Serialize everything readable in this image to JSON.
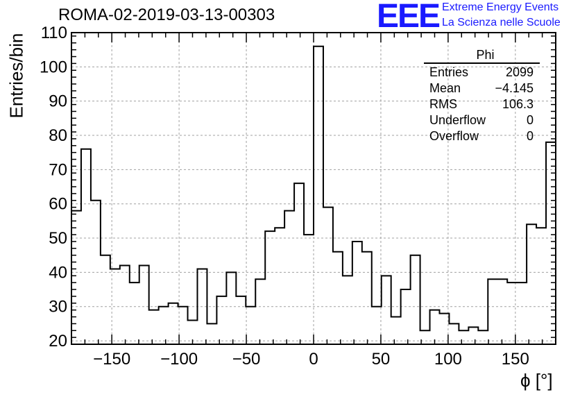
{
  "title": "ROMA-02-2019-03-13-00303",
  "logo": {
    "text": "EEE",
    "line1": "Extreme Energy Events",
    "line2": "La Scienza nelle Scuole",
    "color": "#1a1aff"
  },
  "stats_box": {
    "title": "Phi",
    "rows": [
      {
        "label": "Entries",
        "value": "2099"
      },
      {
        "label": "Mean",
        "value": "−4.145"
      },
      {
        "label": "RMS",
        "value": "106.3"
      },
      {
        "label": "Underflow",
        "value": "0"
      },
      {
        "label": "Overflow",
        "value": "0"
      }
    ]
  },
  "chart_data": {
    "type": "histogram",
    "title": "ROMA-02-2019-03-13-00303",
    "xlabel": "ϕ [°]",
    "ylabel": "Entries/bin",
    "xlim": [
      -180,
      180
    ],
    "ylim": [
      19,
      110
    ],
    "bin_width": 7.2,
    "bin_edges_start": -180,
    "x_ticks": [
      -150,
      -100,
      -50,
      0,
      50,
      100,
      150
    ],
    "x_tick_labels": [
      "−150",
      "−100",
      "−50",
      "0",
      "50",
      "100",
      "150"
    ],
    "y_ticks": [
      20,
      30,
      40,
      50,
      60,
      70,
      80,
      90,
      100,
      110
    ],
    "y_tick_labels": [
      "20",
      "30",
      "40",
      "50",
      "60",
      "70",
      "80",
      "90",
      "100",
      "110"
    ],
    "grid": true,
    "values": [
      58,
      76,
      61,
      45,
      41,
      42,
      37,
      42,
      29,
      30,
      31,
      30,
      26,
      41,
      25,
      33,
      40,
      33,
      30,
      38,
      52,
      53,
      58,
      66,
      51,
      106,
      59,
      46,
      39,
      49,
      46,
      30,
      39,
      27,
      35,
      45,
      23,
      29,
      28,
      25,
      23,
      24,
      23,
      38,
      38,
      37,
      37,
      54,
      53,
      78
    ]
  }
}
